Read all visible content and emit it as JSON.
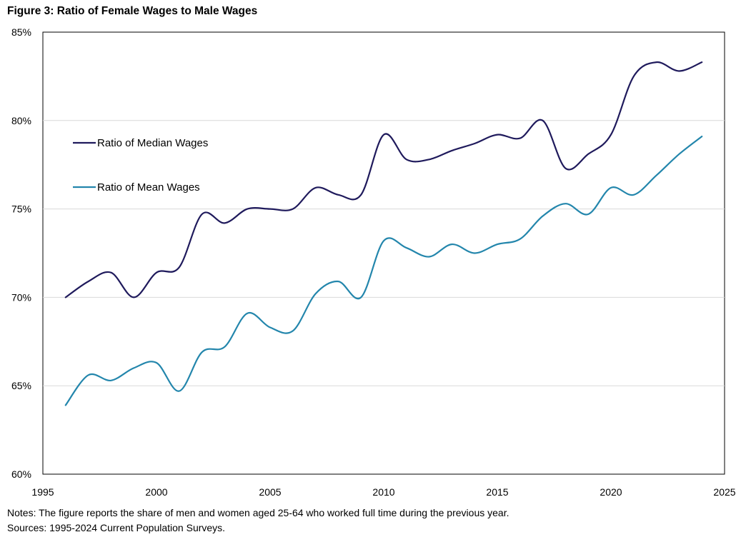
{
  "chart_data": {
    "type": "line",
    "title": "Figure 3: Ratio of Female Wages to Male Wages",
    "xlabel": "",
    "ylabel": "",
    "xlim": [
      1995,
      2025
    ],
    "ylim": [
      60,
      85
    ],
    "x_ticks": [
      "1995",
      "2000",
      "2005",
      "2010",
      "2015",
      "2020",
      "2025"
    ],
    "y_ticks": [
      "60%",
      "65%",
      "70%",
      "75%",
      "80%",
      "85%"
    ],
    "grid": "horizontal",
    "legend_position": "upper-left",
    "x": [
      1996,
      1997,
      1998,
      1999,
      2000,
      2001,
      2002,
      2003,
      2004,
      2005,
      2006,
      2007,
      2008,
      2009,
      2010,
      2011,
      2012,
      2013,
      2014,
      2015,
      2016,
      2017,
      2018,
      2019,
      2020,
      2021,
      2022,
      2023,
      2024
    ],
    "series": [
      {
        "name": "Ratio of Median Wages",
        "color": "#1f1a5c",
        "values": [
          70.0,
          70.9,
          71.4,
          70.0,
          71.4,
          71.7,
          74.7,
          74.2,
          75.0,
          75.0,
          75.0,
          76.2,
          75.8,
          75.8,
          79.2,
          77.8,
          77.8,
          78.3,
          78.7,
          79.2,
          79.0,
          80.0,
          77.3,
          78.1,
          79.2,
          82.5,
          83.3,
          82.8,
          83.3
        ]
      },
      {
        "name": "Ratio of Mean Wages",
        "color": "#2386ac",
        "values": [
          63.9,
          65.6,
          65.3,
          66.0,
          66.3,
          64.7,
          66.9,
          67.2,
          69.1,
          68.3,
          68.1,
          70.2,
          70.9,
          70.0,
          73.2,
          72.8,
          72.3,
          73.0,
          72.5,
          73.0,
          73.3,
          74.6,
          75.3,
          74.7,
          76.2,
          75.8,
          76.9,
          78.1,
          79.1
        ]
      }
    ]
  },
  "notes": {
    "line1": "Notes: The figure reports the share of men and women aged 25-64  who worked full time during the previous year.",
    "line2": "Sources: 1995-2024  Current Population Surveys."
  }
}
